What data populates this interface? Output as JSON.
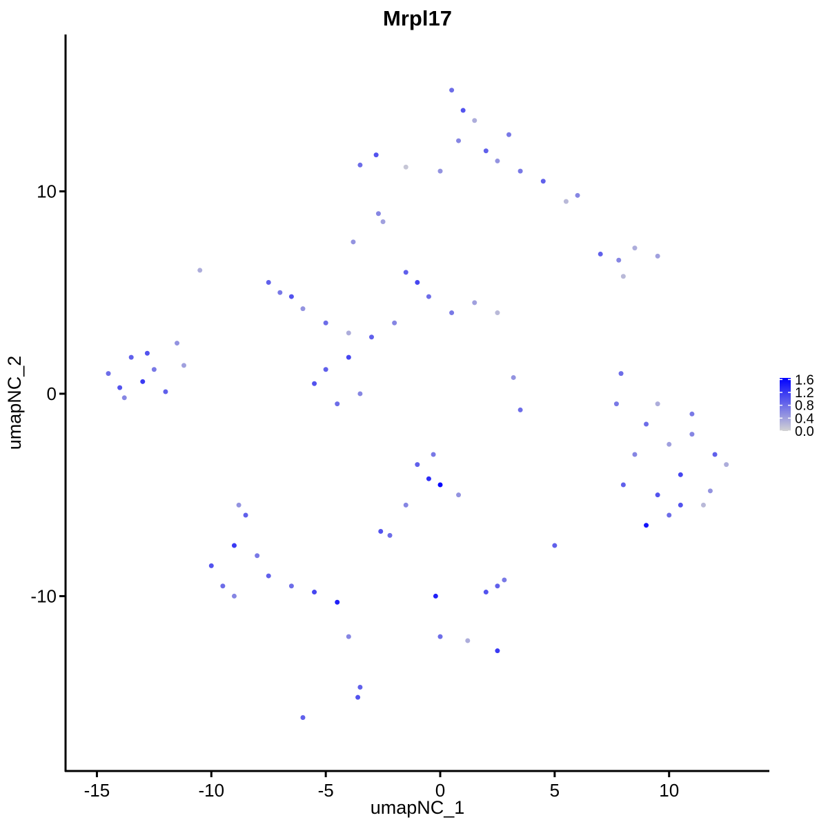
{
  "chart_data": {
    "type": "scatter",
    "title": "Mrpl17",
    "x_label": "umapNC_1",
    "y_label": "umapNC_2",
    "x": [
      -14.5,
      -14,
      -13.5,
      -13,
      -12.5,
      -12,
      -11.5,
      -13.8,
      -12.8,
      -11.2,
      -7.5,
      -7,
      -6.5,
      -6,
      -5,
      -4,
      -3,
      -2,
      -1,
      -0.5,
      0.5,
      1.5,
      2.5,
      -1.5,
      -5.5,
      -4.5,
      -3.5,
      -5,
      -4,
      -3.8,
      0.5,
      1.0,
      1.5,
      0.8,
      2.0,
      2.5,
      3.5,
      4.5,
      5.5,
      6.0,
      -3.5,
      -2.8,
      -1.5,
      0,
      -2.5,
      3.0,
      8,
      8.5,
      9,
      9.5,
      10,
      10.5,
      11,
      11.5,
      12,
      12.5,
      9,
      10,
      11,
      9.5,
      10.5,
      11.8,
      -10,
      -9.5,
      -9,
      -8.5,
      -8,
      -9,
      -8.8,
      -7.5,
      -6.5,
      -5.5,
      -4.5,
      -4,
      -3.5,
      -3.6,
      -1,
      -0.5,
      0,
      -0.3,
      0.8,
      -1.5,
      -2.6,
      -2.2,
      2.5,
      2,
      2.8,
      0,
      -0.2,
      1.2,
      2.5,
      3.5,
      3.2,
      5,
      7,
      7.8,
      8.5,
      9.5,
      8,
      7.7,
      7.9,
      -6,
      -10.5,
      -2.7
    ],
    "y": [
      1.0,
      0.3,
      1.8,
      0.6,
      1.2,
      0.1,
      2.5,
      -0.2,
      2.0,
      1.4,
      5.5,
      5.0,
      4.8,
      4.2,
      3.5,
      3.0,
      2.8,
      3.5,
      5.5,
      4.8,
      4.0,
      4.5,
      4.0,
      6.0,
      0.5,
      -0.5,
      0.0,
      1.2,
      1.8,
      7.5,
      15,
      14,
      13.5,
      12.5,
      12,
      11.5,
      11,
      10.5,
      9.5,
      9.8,
      11.3,
      11.8,
      11.2,
      11.0,
      8.5,
      12.8,
      -4.5,
      -3,
      -1.5,
      -5,
      -2.5,
      -4,
      -1,
      -5.5,
      -3,
      -3.5,
      -6.5,
      -6,
      -2,
      -0.5,
      -5.5,
      -4.8,
      -8.5,
      -9.5,
      -7.5,
      -6,
      -8,
      -10,
      -5.5,
      -9,
      -9.5,
      -9.8,
      -10.3,
      -12,
      -14.5,
      -15,
      -3.5,
      -4.2,
      -4.5,
      -3,
      -5,
      -5.5,
      -6.8,
      -7,
      -9.5,
      -9.8,
      -9.2,
      -12,
      -10,
      -12.2,
      -12.7,
      -0.8,
      0.8,
      -7.5,
      6.9,
      6.6,
      7.2,
      6.8,
      5.8,
      -0.5,
      1,
      -16,
      6.1,
      8.9
    ],
    "values": [
      0.8,
      1.0,
      0.9,
      1.2,
      0.7,
      0.9,
      0.5,
      0.6,
      1.0,
      0.4,
      0.9,
      0.7,
      1.0,
      0.5,
      0.8,
      0.3,
      0.9,
      0.6,
      1.1,
      0.8,
      0.7,
      0.4,
      0.2,
      0.9,
      1.0,
      0.8,
      0.6,
      0.9,
      1.1,
      0.5,
      0.8,
      1.0,
      0.3,
      0.6,
      0.9,
      0.5,
      0.7,
      0.9,
      0.2,
      0.6,
      0.8,
      1.0,
      0.1,
      0.5,
      0.4,
      0.7,
      0.9,
      0.6,
      0.8,
      1.0,
      0.4,
      1.1,
      0.7,
      0.2,
      0.9,
      0.3,
      1.5,
      0.8,
      0.6,
      0.3,
      1.0,
      0.5,
      1.0,
      0.8,
      1.2,
      0.9,
      0.7,
      0.6,
      0.5,
      0.9,
      0.8,
      1.1,
      1.4,
      0.6,
      0.9,
      1.0,
      0.9,
      1.3,
      1.6,
      0.7,
      0.5,
      0.6,
      1.0,
      0.8,
      0.9,
      1.0,
      0.7,
      0.8,
      1.4,
      0.3,
      1.2,
      0.8,
      0.5,
      0.9,
      0.9,
      0.6,
      0.3,
      0.4,
      0.2,
      0.7,
      0.8,
      0.9,
      0.3,
      0.6
    ],
    "xlim": [
      -16.37,
      14.38
    ],
    "ylim": [
      -18.64,
      17.75
    ],
    "xticks": [
      -15,
      -10,
      -5,
      0,
      5,
      10
    ],
    "yticks": [
      -10,
      0,
      10
    ],
    "low_color": "#d3d3d3",
    "high_color": "#0000ff",
    "colorlim": [
      0,
      1.65
    ],
    "colorticks": [
      {
        "value": 0,
        "label": "0.0"
      },
      0.4,
      0.8,
      1.2,
      1.6
    ]
  }
}
